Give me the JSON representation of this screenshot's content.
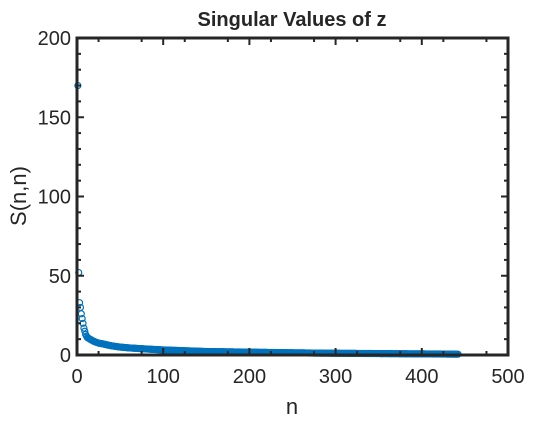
{
  "chart_data": {
    "type": "scatter",
    "title": "Singular Values of z",
    "xlabel": "n",
    "ylabel": "S(n,n)",
    "xlim": [
      0,
      500
    ],
    "ylim": [
      0,
      200
    ],
    "xticks": [
      0,
      100,
      200,
      300,
      400,
      500
    ],
    "yticks": [
      0,
      50,
      100,
      150,
      200
    ],
    "xtick_labels": [
      "0",
      "100",
      "200",
      "300",
      "400",
      "500"
    ],
    "ytick_labels": [
      "0",
      "50",
      "100",
      "150",
      "200"
    ],
    "grid": false,
    "marker": "open-circle",
    "color": "#0072BD",
    "series": [
      {
        "n_points": 442,
        "x": [
          1,
          2,
          3,
          4,
          5,
          6,
          7,
          8,
          9,
          10,
          12,
          15,
          20,
          25,
          30,
          40,
          50,
          60,
          80,
          100,
          120,
          150,
          175,
          200,
          225,
          250,
          262,
          275,
          300,
          325,
          350,
          375,
          400,
          425,
          442
        ],
        "y": [
          170,
          52,
          33,
          30,
          26,
          23,
          20,
          17,
          15,
          13,
          11,
          10,
          8.5,
          7.5,
          7,
          5.8,
          5,
          4.5,
          3.8,
          3.2,
          2.8,
          2.2,
          2,
          1.8,
          1.6,
          1.4,
          1.35,
          1.2,
          1.1,
          1.0,
          0.9,
          0.8,
          0.7,
          0.6,
          0.5
        ]
      }
    ]
  }
}
